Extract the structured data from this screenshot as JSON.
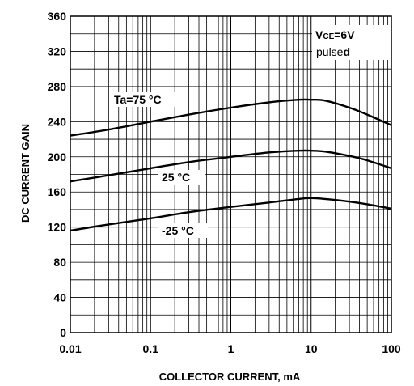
{
  "chart_data": {
    "type": "line",
    "xlabel": "COLLECTOR CURRENT, mA",
    "ylabel": "DC CURRENT GAIN",
    "x_scale": "log",
    "xlim": [
      0.01,
      100
    ],
    "ylim": [
      0,
      360
    ],
    "x_tick_labels": [
      "0.01",
      "0.1",
      "1",
      "10",
      "100"
    ],
    "y_tick_labels": [
      "0",
      "40",
      "80",
      "120",
      "160",
      "200",
      "240",
      "280",
      "320",
      "360"
    ],
    "grid": true,
    "conditions": {
      "vce_prefix": "V",
      "vce_sub": "CE",
      "vce_value": "=6V",
      "pulsed_main": "pulse",
      "pulsed_end": "d"
    },
    "series": [
      {
        "name": "Ta=75 °C",
        "x": [
          0.01,
          0.03,
          0.1,
          0.3,
          1,
          3,
          7,
          10,
          15,
          30,
          50,
          100
        ],
        "y": [
          224,
          231,
          240,
          248,
          256,
          262,
          265,
          265,
          264,
          256,
          248,
          236
        ]
      },
      {
        "name": "25 °C",
        "x": [
          0.01,
          0.03,
          0.1,
          0.3,
          1,
          3,
          7,
          10,
          15,
          30,
          50,
          100
        ],
        "y": [
          172,
          179,
          187,
          194,
          200,
          205,
          207,
          207,
          206,
          201,
          196,
          187
        ]
      },
      {
        "name": "-25 °C",
        "x": [
          0.01,
          0.03,
          0.1,
          0.3,
          1,
          3,
          7,
          10,
          15,
          30,
          50,
          100
        ],
        "y": [
          116,
          123,
          130,
          137,
          143,
          148,
          152,
          153,
          152,
          149,
          146,
          141
        ]
      }
    ]
  }
}
